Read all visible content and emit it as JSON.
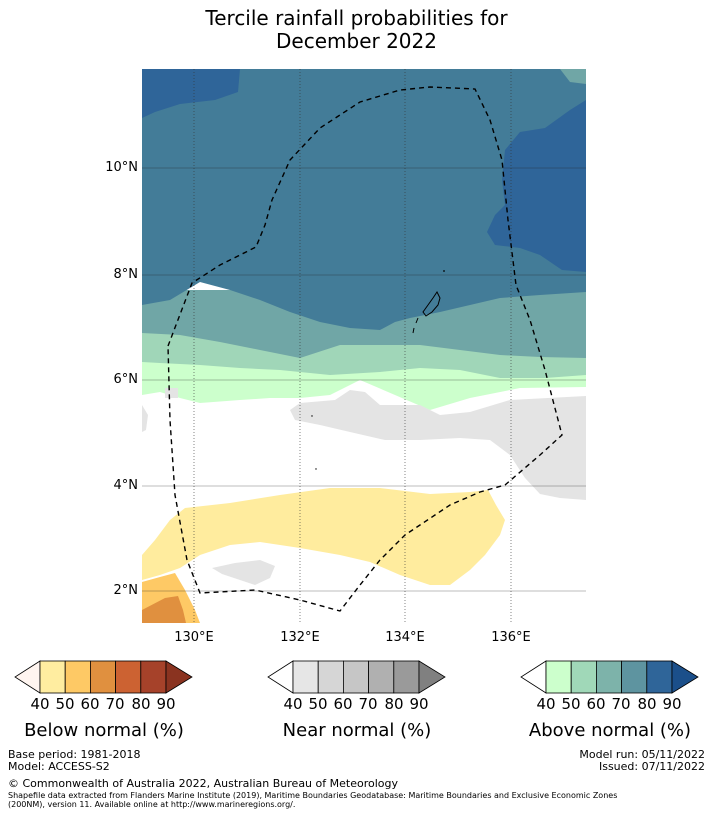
{
  "title_line1": "Tercile rainfall probabilities for",
  "title_line2": "December 2022",
  "lat_labels": [
    "10°N",
    "8°N",
    "6°N",
    "4°N",
    "2°N"
  ],
  "lon_labels": [
    "130°E",
    "132°E",
    "134°E",
    "136°E"
  ],
  "colorbars": [
    {
      "label": "Below normal (%)",
      "ticks": [
        "40",
        "50",
        "60",
        "70",
        "80",
        "90"
      ],
      "colors": [
        "#fff5f0",
        "#ffeda0",
        "#fec965",
        "#e0903f",
        "#cc6232",
        "#a6422a",
        "#8a3320"
      ]
    },
    {
      "label": "Near normal (%)",
      "ticks": [
        "40",
        "50",
        "60",
        "70",
        "80",
        "90"
      ],
      "colors": [
        "#ffffff",
        "#e6e6e6",
        "#d6d6d6",
        "#c6c6c6",
        "#b0b0b0",
        "#9a9a9a",
        "#808080"
      ]
    },
    {
      "label": "Above normal (%)",
      "ticks": [
        "40",
        "50",
        "60",
        "70",
        "80",
        "90"
      ],
      "colors": [
        "#ffffff",
        "#ccffcc",
        "#a0d8b8",
        "#7db3aa",
        "#5e94a0",
        "#2f6599",
        "#1b4f8a"
      ]
    }
  ],
  "footer": {
    "base_period": "Base period: 1981-2018",
    "model": "Model: ACCESS-S2",
    "model_run": "Model run: 05/11/2022",
    "issued": "Issued: 07/11/2022",
    "copyright": "© Commonwealth of Australia 2022, Australian Bureau of Meteorology",
    "shapefile_line1": "Shapefile data extracted from Flanders Marine Institute (2019), Maritime Boundaries Geodatabase: Maritime Boundaries and Exclusive Economic Zones",
    "shapefile_line2": "(200NM), version 11. Available online at http://www.marineregions.org/."
  }
}
